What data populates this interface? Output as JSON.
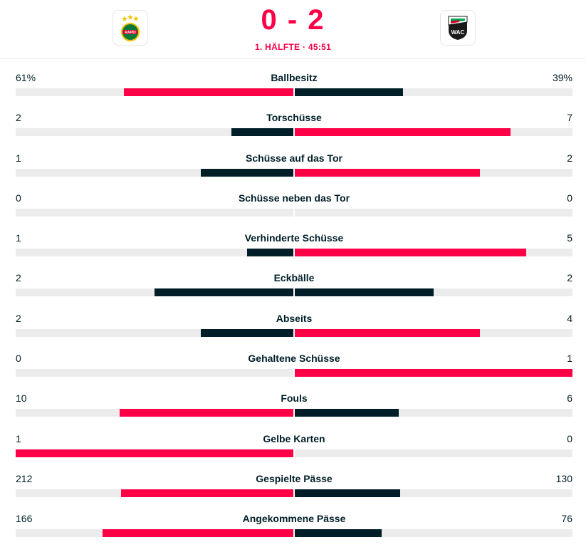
{
  "match": {
    "score": "0 - 2",
    "period": "1. HÄLFTE · 45:51",
    "home_logo_text": "RAPID",
    "away_logo_text": "WAC"
  },
  "colors": {
    "accent": "#ff0046",
    "dark": "#001e28",
    "track": "#ececec"
  },
  "stats": [
    {
      "name": "Ballbesitz",
      "home": "61%",
      "away": "39%",
      "home_value": 61,
      "away_value": 39
    },
    {
      "name": "Torschüsse",
      "home": "2",
      "away": "7",
      "home_value": 2,
      "away_value": 7
    },
    {
      "name": "Schüsse auf das Tor",
      "home": "1",
      "away": "2",
      "home_value": 1,
      "away_value": 2
    },
    {
      "name": "Schüsse neben das Tor",
      "home": "0",
      "away": "0",
      "home_value": 0,
      "away_value": 0
    },
    {
      "name": "Verhinderte Schüsse",
      "home": "1",
      "away": "5",
      "home_value": 1,
      "away_value": 5
    },
    {
      "name": "Eckbälle",
      "home": "2",
      "away": "2",
      "home_value": 2,
      "away_value": 2
    },
    {
      "name": "Abseits",
      "home": "2",
      "away": "4",
      "home_value": 2,
      "away_value": 4
    },
    {
      "name": "Gehaltene Schüsse",
      "home": "0",
      "away": "1",
      "home_value": 0,
      "away_value": 1
    },
    {
      "name": "Fouls",
      "home": "10",
      "away": "6",
      "home_value": 10,
      "away_value": 6
    },
    {
      "name": "Gelbe Karten",
      "home": "1",
      "away": "0",
      "home_value": 1,
      "away_value": 0
    },
    {
      "name": "Gespielte Pässe",
      "home": "212",
      "away": "130",
      "home_value": 212,
      "away_value": 130
    },
    {
      "name": "Angekommene Pässe",
      "home": "166",
      "away": "76",
      "home_value": 166,
      "away_value": 76
    }
  ]
}
